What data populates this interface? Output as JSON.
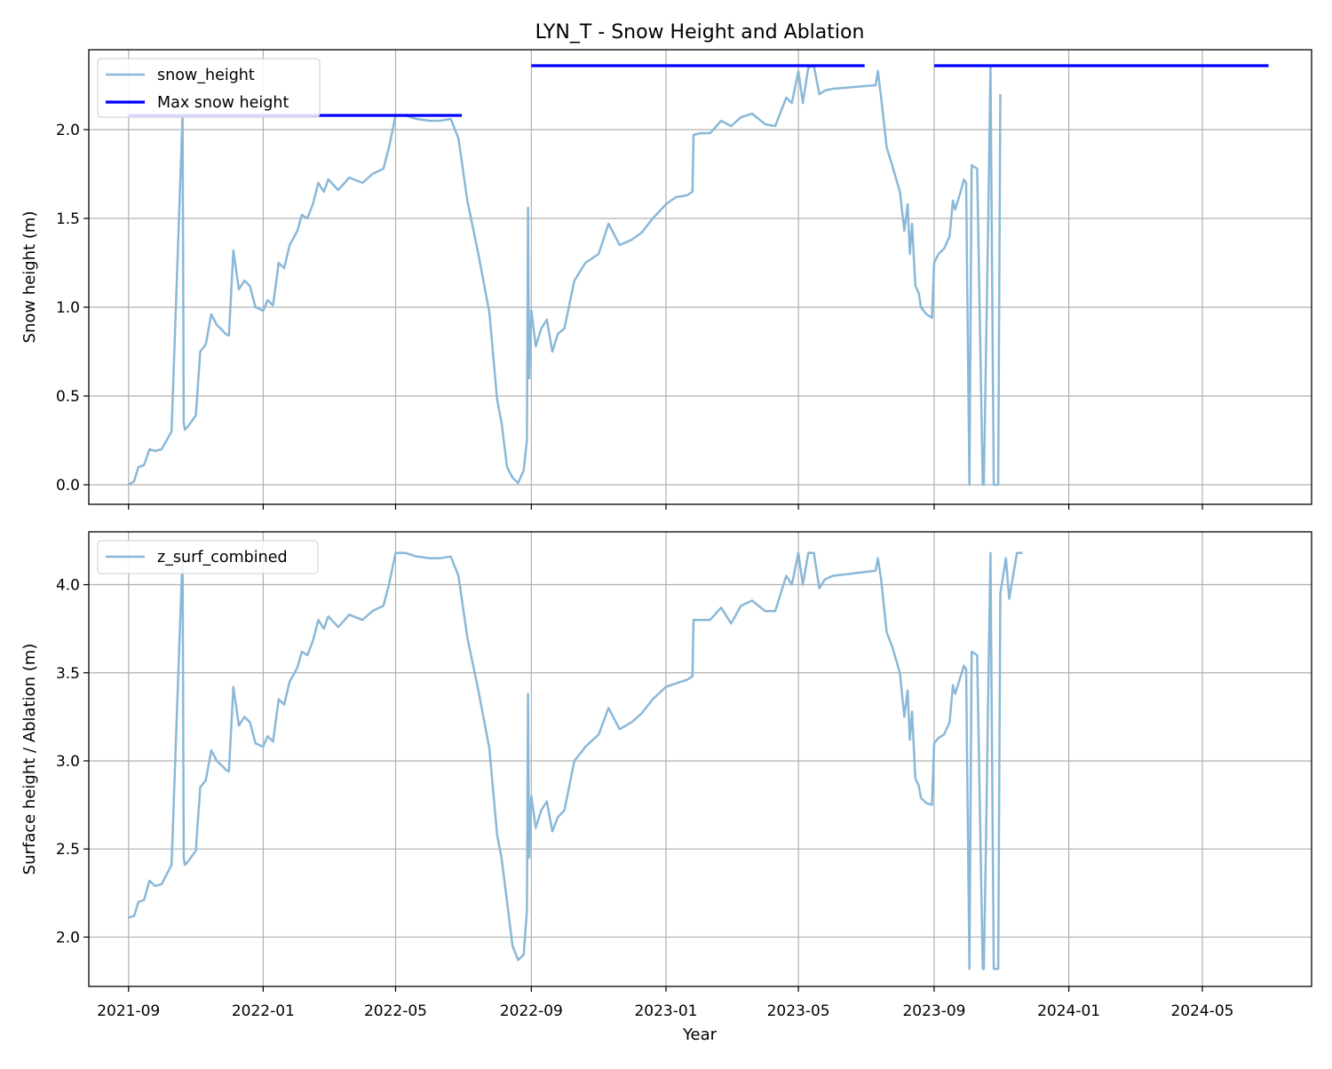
{
  "chart_data": {
    "type": "line",
    "title": "LYN_T - Snow Height and Ablation",
    "xlabel": "Year",
    "x_ticks": [
      "2021-09",
      "2022-01",
      "2022-05",
      "2022-09",
      "2023-01",
      "2023-05",
      "2023-09",
      "2024-01",
      "2024-05"
    ],
    "xlim": [
      "2021-07-27",
      "2024-08-08"
    ],
    "grid": true,
    "colors": {
      "series_line": "#8ab8d8",
      "max_line": "#0000ff"
    },
    "panels": [
      {
        "ylabel": "Snow height (m)",
        "ylim": [
          -0.11,
          2.45
        ],
        "y_ticks": [
          "0.0",
          "0.5",
          "1.0",
          "1.5",
          "2.0"
        ],
        "legend": {
          "placement": "upper left",
          "entries": [
            "snow_height",
            "Max snow height"
          ]
        },
        "series": [
          {
            "name": "snow_height",
            "style": "line",
            "x": [
              "2021-09-01",
              "2021-09-06",
              "2021-09-10",
              "2021-09-15",
              "2021-09-20",
              "2021-09-25",
              "2021-10-01",
              "2021-10-10",
              "2021-10-20",
              "2021-10-21",
              "2021-10-22",
              "2021-10-25",
              "2021-11-01",
              "2021-11-05",
              "2021-11-10",
              "2021-11-15",
              "2021-11-20",
              "2021-11-25",
              "2021-11-28",
              "2021-12-01",
              "2021-12-05",
              "2021-12-10",
              "2021-12-15",
              "2021-12-20",
              "2021-12-25",
              "2022-01-01",
              "2022-01-05",
              "2022-01-10",
              "2022-01-15",
              "2022-01-20",
              "2022-01-25",
              "2022-02-01",
              "2022-02-05",
              "2022-02-10",
              "2022-02-15",
              "2022-02-20",
              "2022-02-25",
              "2022-03-01",
              "2022-03-10",
              "2022-03-20",
              "2022-04-01",
              "2022-04-10",
              "2022-04-20",
              "2022-04-25",
              "2022-05-01",
              "2022-05-10",
              "2022-05-20",
              "2022-06-01",
              "2022-06-10",
              "2022-06-20",
              "2022-06-27",
              "2022-07-05",
              "2022-07-15",
              "2022-07-25",
              "2022-08-01",
              "2022-08-05",
              "2022-08-10",
              "2022-08-15",
              "2022-08-20",
              "2022-08-25",
              "2022-08-28",
              "2022-08-29",
              "2022-08-30",
              "2022-09-01",
              "2022-09-05",
              "2022-09-10",
              "2022-09-15",
              "2022-09-20",
              "2022-09-25",
              "2022-10-01",
              "2022-10-10",
              "2022-10-20",
              "2022-11-01",
              "2022-11-10",
              "2022-11-20",
              "2022-12-01",
              "2022-12-10",
              "2022-12-20",
              "2023-01-01",
              "2023-01-10",
              "2023-01-20",
              "2023-01-25",
              "2023-01-26",
              "2023-02-01",
              "2023-02-10",
              "2023-02-20",
              "2023-03-01",
              "2023-03-10",
              "2023-03-20",
              "2023-04-01",
              "2023-04-10",
              "2023-04-20",
              "2023-04-25",
              "2023-05-01",
              "2023-05-05",
              "2023-05-10",
              "2023-05-15",
              "2023-05-20",
              "2023-05-25",
              "2023-06-01",
              "2023-07-10",
              "2023-07-12",
              "2023-07-15",
              "2023-07-20",
              "2023-07-25",
              "2023-08-01",
              "2023-08-05",
              "2023-08-08",
              "2023-08-10",
              "2023-08-12",
              "2023-08-15",
              "2023-08-18",
              "2023-08-20",
              "2023-08-25",
              "2023-08-30",
              "2023-09-01",
              "2023-09-05",
              "2023-09-10",
              "2023-09-15",
              "2023-09-18",
              "2023-09-20",
              "2023-09-25",
              "2023-09-28",
              "2023-09-30",
              "2023-10-03",
              "2023-10-05",
              "2023-10-10",
              "2023-10-15",
              "2023-10-16",
              "2023-10-18",
              "2023-10-20",
              "2023-10-22",
              "2023-10-25",
              "2023-10-28",
              "2023-10-29",
              "2023-10-31"
            ],
            "y": [
              0.0,
              0.02,
              0.1,
              0.11,
              0.2,
              0.19,
              0.2,
              0.3,
              2.08,
              0.35,
              0.31,
              0.33,
              0.39,
              0.75,
              0.79,
              0.96,
              0.9,
              0.87,
              0.85,
              0.84,
              1.32,
              1.1,
              1.15,
              1.12,
              1.0,
              0.98,
              1.04,
              1.01,
              1.25,
              1.22,
              1.35,
              1.43,
              1.52,
              1.5,
              1.58,
              1.7,
              1.65,
              1.72,
              1.66,
              1.73,
              1.7,
              1.75,
              1.78,
              1.9,
              2.08,
              2.08,
              2.06,
              2.05,
              2.05,
              2.06,
              1.95,
              1.6,
              1.3,
              0.97,
              0.48,
              0.35,
              0.1,
              0.04,
              0.01,
              0.08,
              0.25,
              1.56,
              0.6,
              0.98,
              0.78,
              0.88,
              0.93,
              0.75,
              0.85,
              0.88,
              1.15,
              1.25,
              1.3,
              1.47,
              1.35,
              1.38,
              1.42,
              1.5,
              1.58,
              1.62,
              1.63,
              1.65,
              1.97,
              1.98,
              1.98,
              2.05,
              2.02,
              2.07,
              2.09,
              2.03,
              2.02,
              2.18,
              2.15,
              2.33,
              2.15,
              2.35,
              2.36,
              2.2,
              2.22,
              2.23,
              2.25,
              2.33,
              2.18,
              1.9,
              1.8,
              1.65,
              1.43,
              1.58,
              1.3,
              1.47,
              1.12,
              1.08,
              1.0,
              0.96,
              0.94,
              1.25,
              1.3,
              1.33,
              1.4,
              1.6,
              1.55,
              1.65,
              1.72,
              1.7,
              0.0,
              1.8,
              1.78,
              0.0,
              0.0,
              0.75,
              1.5,
              2.36,
              0.0,
              0.0,
              0.0,
              2.2
            ]
          },
          {
            "name": "Max snow height",
            "style": "segments",
            "segments": [
              {
                "x": [
                  "2021-09-01",
                  "2022-06-30"
                ],
                "y": 2.08
              },
              {
                "x": [
                  "2022-09-01",
                  "2023-06-30"
                ],
                "y": 2.36
              },
              {
                "x": [
                  "2023-09-01",
                  "2024-06-30"
                ],
                "y": 2.36
              }
            ]
          }
        ]
      },
      {
        "ylabel": "Surface height / Ablation (m)",
        "ylim": [
          1.72,
          4.3
        ],
        "y_ticks": [
          "2.0",
          "2.5",
          "3.0",
          "3.5",
          "4.0"
        ],
        "legend": {
          "placement": "upper left",
          "entries": [
            "z_surf_combined"
          ]
        },
        "series": [
          {
            "name": "z_surf_combined",
            "style": "line",
            "x": [
              "2021-09-01",
              "2021-09-06",
              "2021-09-10",
              "2021-09-15",
              "2021-09-20",
              "2021-09-25",
              "2021-10-01",
              "2021-10-10",
              "2021-10-20",
              "2021-10-21",
              "2021-10-22",
              "2021-10-25",
              "2021-11-01",
              "2021-11-05",
              "2021-11-10",
              "2021-11-15",
              "2021-11-20",
              "2021-11-25",
              "2021-11-28",
              "2021-12-01",
              "2021-12-05",
              "2021-12-10",
              "2021-12-15",
              "2021-12-20",
              "2021-12-25",
              "2022-01-01",
              "2022-01-05",
              "2022-01-10",
              "2022-01-15",
              "2022-01-20",
              "2022-01-25",
              "2022-02-01",
              "2022-02-05",
              "2022-02-10",
              "2022-02-15",
              "2022-02-20",
              "2022-02-25",
              "2022-03-01",
              "2022-03-10",
              "2022-03-20",
              "2022-04-01",
              "2022-04-10",
              "2022-04-20",
              "2022-04-25",
              "2022-05-01",
              "2022-05-10",
              "2022-05-20",
              "2022-06-01",
              "2022-06-10",
              "2022-06-20",
              "2022-06-27",
              "2022-07-05",
              "2022-07-15",
              "2022-07-25",
              "2022-08-01",
              "2022-08-05",
              "2022-08-10",
              "2022-08-15",
              "2022-08-20",
              "2022-08-25",
              "2022-08-28",
              "2022-08-29",
              "2022-08-30",
              "2022-09-01",
              "2022-09-05",
              "2022-09-10",
              "2022-09-15",
              "2022-09-20",
              "2022-09-25",
              "2022-10-01",
              "2022-10-10",
              "2022-10-20",
              "2022-11-01",
              "2022-11-10",
              "2022-11-20",
              "2022-12-01",
              "2022-12-10",
              "2022-12-20",
              "2023-01-01",
              "2023-01-10",
              "2023-01-20",
              "2023-01-25",
              "2023-01-26",
              "2023-02-01",
              "2023-02-10",
              "2023-02-20",
              "2023-03-01",
              "2023-03-10",
              "2023-03-20",
              "2023-04-01",
              "2023-04-10",
              "2023-04-20",
              "2023-04-25",
              "2023-05-01",
              "2023-05-05",
              "2023-05-10",
              "2023-05-15",
              "2023-05-20",
              "2023-05-25",
              "2023-06-01",
              "2023-07-10",
              "2023-07-12",
              "2023-07-15",
              "2023-07-20",
              "2023-07-25",
              "2023-08-01",
              "2023-08-05",
              "2023-08-08",
              "2023-08-10",
              "2023-08-12",
              "2023-08-15",
              "2023-08-18",
              "2023-08-20",
              "2023-08-25",
              "2023-08-30",
              "2023-09-01",
              "2023-09-05",
              "2023-09-10",
              "2023-09-15",
              "2023-09-18",
              "2023-09-20",
              "2023-09-25",
              "2023-09-28",
              "2023-09-30",
              "2023-10-03",
              "2023-10-05",
              "2023-10-10",
              "2023-10-15",
              "2023-10-16",
              "2023-10-18",
              "2023-10-20",
              "2023-10-22",
              "2023-10-25",
              "2023-10-28",
              "2023-10-29",
              "2023-10-31",
              "2023-11-05",
              "2023-11-08",
              "2023-11-15",
              "2023-11-20"
            ],
            "y": [
              2.11,
              2.12,
              2.2,
              2.21,
              2.32,
              2.29,
              2.3,
              2.41,
              4.18,
              2.45,
              2.41,
              2.43,
              2.49,
              2.85,
              2.89,
              3.06,
              3.0,
              2.97,
              2.95,
              2.94,
              3.42,
              3.2,
              3.25,
              3.22,
              3.1,
              3.08,
              3.14,
              3.11,
              3.35,
              3.32,
              3.45,
              3.53,
              3.62,
              3.6,
              3.68,
              3.8,
              3.75,
              3.82,
              3.76,
              3.83,
              3.8,
              3.85,
              3.88,
              4.0,
              4.18,
              4.18,
              4.16,
              4.15,
              4.15,
              4.16,
              4.05,
              3.7,
              3.4,
              3.07,
              2.58,
              2.45,
              2.2,
              1.95,
              1.87,
              1.9,
              2.15,
              3.38,
              2.45,
              2.8,
              2.62,
              2.72,
              2.77,
              2.6,
              2.68,
              2.72,
              3.0,
              3.08,
              3.15,
              3.3,
              3.18,
              3.22,
              3.27,
              3.35,
              3.42,
              3.44,
              3.46,
              3.48,
              3.8,
              3.8,
              3.8,
              3.87,
              3.78,
              3.88,
              3.91,
              3.85,
              3.85,
              4.05,
              4.0,
              4.18,
              4.0,
              4.18,
              4.18,
              3.98,
              4.03,
              4.05,
              4.08,
              4.15,
              4.03,
              3.73,
              3.65,
              3.5,
              3.25,
              3.4,
              3.12,
              3.28,
              2.9,
              2.86,
              2.79,
              2.76,
              2.75,
              3.1,
              3.13,
              3.15,
              3.22,
              3.43,
              3.38,
              3.48,
              3.54,
              3.52,
              1.82,
              3.62,
              3.6,
              1.82,
              1.82,
              2.55,
              3.4,
              4.18,
              1.82,
              1.82,
              1.82,
              3.95,
              4.15,
              3.92,
              4.18,
              4.18
            ]
          }
        ]
      }
    ]
  }
}
